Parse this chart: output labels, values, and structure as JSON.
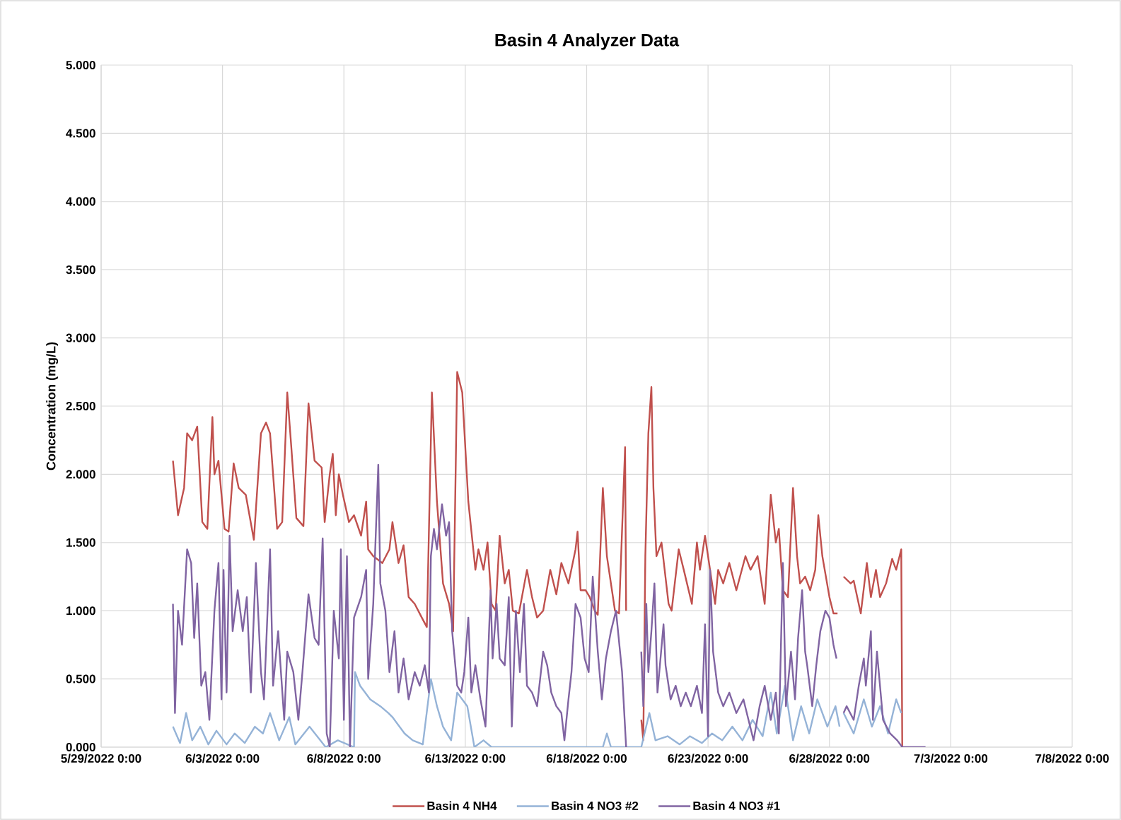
{
  "chart_data": {
    "type": "line",
    "title": "Basin 4 Analyzer Data",
    "ylabel": "Concentration (mg/L)",
    "xlim": [
      "2022-05-29",
      "2022-07-08"
    ],
    "xticks": [
      {
        "value": "2022-05-29",
        "label": "5/29/2022 0:00"
      },
      {
        "value": "2022-06-03",
        "label": "6/3/2022 0:00"
      },
      {
        "value": "2022-06-08",
        "label": "6/8/2022 0:00"
      },
      {
        "value": "2022-06-13",
        "label": "6/13/2022 0:00"
      },
      {
        "value": "2022-06-18",
        "label": "6/18/2022 0:00"
      },
      {
        "value": "2022-06-23",
        "label": "6/23/2022 0:00"
      },
      {
        "value": "2022-06-28",
        "label": "6/28/2022 0:00"
      },
      {
        "value": "2022-07-03",
        "label": "7/3/2022 0:00"
      },
      {
        "value": "2022-07-08",
        "label": "7/8/2022 0:00"
      }
    ],
    "ylim": [
      0,
      5
    ],
    "yticks": [
      {
        "value": 0,
        "label": "0.000"
      },
      {
        "value": 0.5,
        "label": "0.500"
      },
      {
        "value": 1,
        "label": "1.000"
      },
      {
        "value": 1.5,
        "label": "1.500"
      },
      {
        "value": 2,
        "label": "2.000"
      },
      {
        "value": 2.5,
        "label": "2.500"
      },
      {
        "value": 3,
        "label": "3.000"
      },
      {
        "value": 3.5,
        "label": "3.500"
      },
      {
        "value": 4,
        "label": "4.000"
      },
      {
        "value": 4.5,
        "label": "4.500"
      },
      {
        "value": 5,
        "label": "5.000"
      }
    ],
    "grid": true,
    "legend": "bottom",
    "line_style": "solid",
    "series": [
      {
        "name": "Basin 4 NH4",
        "color": "#c0504d",
        "x": [
          "2022-05-31T23:00",
          "2022-06-01T04:00",
          "2022-06-01T10:00",
          "2022-06-01T13:00",
          "2022-06-01T18:00",
          "2022-06-01T23:00",
          "2022-06-02T04:00",
          "2022-06-02T09:00",
          "2022-06-02T14:00",
          "2022-06-02T16:00",
          "2022-06-02T20:00",
          "2022-06-02T23:00",
          "2022-06-03T02:00",
          "2022-06-03T06:00",
          "2022-06-03T11:00",
          "2022-06-03T16:00",
          "2022-06-03T23:00",
          "2022-06-04T07:00",
          "2022-06-04T14:00",
          "2022-06-04T19:00",
          "2022-06-04T23:00",
          "2022-06-05T06:00",
          "2022-06-05T11:00",
          "2022-06-05T16:00",
          "2022-06-05T20:00",
          "2022-06-06T01:00",
          "2022-06-06T08:00",
          "2022-06-06T13:00",
          "2022-06-06T19:00",
          "2022-06-07T02:00",
          "2022-06-07T05:00",
          "2022-06-07T10:00",
          "2022-06-07T13:00",
          "2022-06-07T16:00",
          "2022-06-07T19:00",
          "2022-06-07T23:00",
          "2022-06-08T05:00",
          "2022-06-08T10:00",
          "2022-06-08T17:00",
          "2022-06-08T22:00",
          "2022-06-09T00:00",
          "2022-06-09T05:00",
          "2022-06-09T14:00",
          "2022-06-09T21:00",
          "2022-06-10T00:00",
          "2022-06-10T06:00",
          "2022-06-10T11:00",
          "2022-06-10T16:00",
          "2022-06-10T22:00",
          "2022-06-11T05:00",
          "2022-06-11T10:00",
          "2022-06-11T15:00",
          "2022-06-11T20:00",
          "2022-06-12T02:00",
          "2022-06-12T08:00",
          "2022-06-12T12:00",
          "2022-06-12T16:00",
          "2022-06-12T21:00",
          "2022-06-13T03:00",
          "2022-06-13T10:00",
          "2022-06-13T13:00",
          "2022-06-13T18:00",
          "2022-06-13T22:00",
          "2022-06-14T02:00",
          "2022-06-14T06:00",
          "2022-06-14T10:00",
          "2022-06-14T15:00",
          "2022-06-14T19:00",
          "2022-06-14T23:00",
          "2022-06-15T05:00",
          "2022-06-15T13:00",
          "2022-06-15T18:00",
          "2022-06-15T23:00",
          "2022-06-16T05:00",
          "2022-06-16T12:00",
          "2022-06-16T18:00",
          "2022-06-16T23:00",
          "2022-06-17T06:00",
          "2022-06-17T13:00",
          "2022-06-17T15:00",
          "2022-06-17T18:00",
          "2022-06-17T23:00",
          "2022-06-18T03:00",
          "2022-06-18T08:00",
          "2022-06-18T11:00",
          "2022-06-18T16:00",
          "2022-06-18T20:00",
          "2022-06-19T04:00",
          "2022-06-19T08:00",
          "2022-06-19T14:00",
          "2022-06-19T15:00",
          "2022-06-20T00:00",
          "2022-06-20T06:00",
          "2022-06-20T08:00",
          "2022-06-20T10:00",
          "2022-06-20T13:00",
          "2022-06-20T16:00",
          "2022-06-20T18:00",
          "2022-06-20T21:00",
          "2022-06-21T02:00",
          "2022-06-21T09:00",
          "2022-06-21T12:00",
          "2022-06-21T19:00",
          "2022-06-22T00:00",
          "2022-06-22T08:00",
          "2022-06-22T13:00",
          "2022-06-22T16:00",
          "2022-06-22T21:00",
          "2022-06-23T02:00",
          "2022-06-23T07:00",
          "2022-06-23T10:00",
          "2022-06-23T15:00",
          "2022-06-23T21:00",
          "2022-06-24T04:00",
          "2022-06-24T13:00",
          "2022-06-24T18:00",
          "2022-06-25T01:00",
          "2022-06-25T08:00",
          "2022-06-25T14:00",
          "2022-06-25T19:00",
          "2022-06-25T22:00",
          "2022-06-26T02:00",
          "2022-06-26T07:00",
          "2022-06-26T12:00",
          "2022-06-26T16:00",
          "2022-06-26T19:00",
          "2022-06-27T00:00",
          "2022-06-27T05:00",
          "2022-06-27T10:00",
          "2022-06-27T13:00",
          "2022-06-27T17:00",
          "2022-06-28T00:00",
          "2022-06-28T04:00",
          "2022-06-28T08:00",
          "2022-06-28T12:00",
          "2022-06-28T14:00",
          "2022-06-28T21:00",
          "2022-06-29T00:00",
          "2022-06-29T07:00",
          "2022-06-29T13:00",
          "2022-06-29T17:00",
          "2022-06-29T22:00",
          "2022-06-30T02:00",
          "2022-06-30T08:00",
          "2022-06-30T14:00",
          "2022-06-30T18:00",
          "2022-06-30T23:00",
          "2022-07-01T00:00"
        ],
        "values": [
          2.1,
          1.7,
          1.9,
          2.3,
          2.25,
          2.35,
          1.65,
          1.6,
          2.42,
          2.0,
          2.1,
          1.85,
          1.6,
          1.58,
          2.08,
          1.9,
          1.85,
          1.52,
          2.3,
          2.38,
          2.3,
          1.6,
          1.65,
          2.6,
          2.2,
          1.68,
          1.62,
          2.52,
          2.1,
          2.05,
          1.65,
          2.0,
          2.15,
          1.7,
          2.0,
          1.85,
          1.65,
          1.7,
          1.55,
          1.8,
          1.45,
          1.4,
          1.35,
          1.45,
          1.65,
          1.35,
          1.48,
          1.1,
          1.05,
          0.95,
          0.88,
          2.6,
          1.8,
          1.2,
          1.05,
          0.85,
          2.75,
          2.6,
          1.8,
          1.3,
          1.45,
          1.3,
          1.5,
          1.05,
          1.0,
          1.55,
          1.2,
          1.3,
          1.0,
          0.98,
          1.3,
          1.1,
          0.95,
          1.0,
          1.3,
          1.12,
          1.35,
          1.2,
          1.45,
          1.58,
          1.15,
          1.15,
          1.1,
          1.0,
          0.97,
          1.9,
          1.4,
          1.0,
          0.98,
          2.2,
          1.0,
          null,
          0.2,
          0.05,
          1.4,
          2.3,
          2.64,
          1.9,
          1.4,
          1.5,
          1.05,
          1.0,
          1.45,
          1.3,
          1.05,
          1.5,
          1.3,
          1.55,
          1.3,
          1.05,
          1.3,
          1.2,
          1.35,
          1.15,
          1.4,
          1.3,
          1.4,
          1.05,
          1.85,
          1.5,
          1.6,
          1.15,
          1.1,
          1.9,
          1.4,
          1.2,
          1.25,
          1.15,
          1.3,
          1.7,
          1.4,
          1.1,
          0.98,
          0.98,
          null,
          1.25,
          1.2,
          1.22,
          0.98,
          1.35,
          1.1,
          1.3,
          1.1,
          1.2,
          1.38,
          1.3,
          1.45,
          0.0
        ]
      },
      {
        "name": "Basin 4 NO3 #2",
        "color": "#95b3d7",
        "x": [
          "2022-05-31T23:00",
          "2022-06-01T06:00",
          "2022-06-01T12:00",
          "2022-06-01T18:00",
          "2022-06-02T02:00",
          "2022-06-02T10:00",
          "2022-06-02T18:00",
          "2022-06-03T04:00",
          "2022-06-03T12:00",
          "2022-06-03T22:00",
          "2022-06-04T08:00",
          "2022-06-04T16:00",
          "2022-06-04T23:00",
          "2022-06-05T08:00",
          "2022-06-05T18:00",
          "2022-06-06T00:00",
          "2022-06-06T14:00",
          "2022-06-07T06:00",
          "2022-06-07T18:00",
          "2022-06-08T10:00",
          "2022-06-08T11:00",
          "2022-06-08T16:00",
          "2022-06-09T02:00",
          "2022-06-09T12:00",
          "2022-06-09T20:00",
          "2022-06-10T00:00",
          "2022-06-10T12:00",
          "2022-06-10T20:00",
          "2022-06-11T06:00",
          "2022-06-11T14:00",
          "2022-06-11T20:00",
          "2022-06-12T02:00",
          "2022-06-12T10:00",
          "2022-06-12T16:00",
          "2022-06-13T02:00",
          "2022-06-13T09:00",
          "2022-06-13T18:00",
          "2022-06-14T02:00",
          "2022-06-18T16:00",
          "2022-06-18T20:00",
          "2022-06-19T00:00",
          "2022-06-20T06:00",
          "2022-06-20T14:00",
          "2022-06-20T20:00",
          "2022-06-21T08:00",
          "2022-06-21T20:00",
          "2022-06-22T06:00",
          "2022-06-22T18:00",
          "2022-06-23T04:00",
          "2022-06-23T14:00",
          "2022-06-24T00:00",
          "2022-06-24T10:00",
          "2022-06-24T20:00",
          "2022-06-25T06:00",
          "2022-06-25T14:00",
          "2022-06-25T20:00",
          "2022-06-26T04:00",
          "2022-06-26T12:00",
          "2022-06-26T20:00",
          "2022-06-27T04:00",
          "2022-06-27T12:00",
          "2022-06-27T22:00",
          "2022-06-28T06:00",
          "2022-06-28T10:00",
          "2022-06-28T12:00",
          "2022-06-28T14:00",
          "2022-06-29T00:00",
          "2022-06-29T10:00",
          "2022-06-29T18:00",
          "2022-06-30T02:00",
          "2022-06-30T10:00",
          "2022-06-30T18:00",
          "2022-06-30T23:00"
        ],
        "values": [
          0.15,
          0.03,
          0.25,
          0.05,
          0.15,
          0.02,
          0.12,
          0.02,
          0.1,
          0.03,
          0.15,
          0.1,
          0.25,
          0.05,
          0.22,
          0.02,
          0.15,
          0.0,
          0.05,
          0.0,
          0.55,
          0.45,
          0.35,
          0.3,
          0.25,
          0.22,
          0.1,
          0.05,
          0.02,
          0.5,
          0.3,
          0.15,
          0.05,
          0.4,
          0.3,
          0.0,
          0.05,
          0.0,
          0.0,
          0.1,
          0.0,
          0.0,
          0.25,
          0.05,
          0.08,
          0.02,
          0.08,
          0.03,
          0.1,
          0.05,
          0.15,
          0.05,
          0.2,
          0.08,
          0.4,
          0.1,
          0.45,
          0.05,
          0.3,
          0.1,
          0.35,
          0.15,
          0.3,
          0.15,
          null,
          0.25,
          0.1,
          0.35,
          0.15,
          0.3,
          0.1,
          0.35,
          0.25
        ]
      },
      {
        "name": "Basin 4 NO3 #1",
        "color": "#8064a2",
        "x": [
          "2022-05-31T23:00",
          "2022-06-01T01:00",
          "2022-06-01T04:00",
          "2022-06-01T08:00",
          "2022-06-01T13:00",
          "2022-06-01T17:00",
          "2022-06-01T20:00",
          "2022-06-01T23:00",
          "2022-06-02T03:00",
          "2022-06-02T07:00",
          "2022-06-02T11:00",
          "2022-06-02T16:00",
          "2022-06-02T20:00",
          "2022-06-02T23:00",
          "2022-06-03T01:00",
          "2022-06-03T04:00",
          "2022-06-03T07:00",
          "2022-06-03T10:00",
          "2022-06-03T15:00",
          "2022-06-03T20:00",
          "2022-06-04T00:00",
          "2022-06-04T04:00",
          "2022-06-04T09:00",
          "2022-06-04T14:00",
          "2022-06-04T17:00",
          "2022-06-04T23:00",
          "2022-06-05T02:00",
          "2022-06-05T07:00",
          "2022-06-05T13:00",
          "2022-06-05T16:00",
          "2022-06-05T22:00",
          "2022-06-06T03:00",
          "2022-06-06T07:00",
          "2022-06-06T13:00",
          "2022-06-06T19:00",
          "2022-06-06T23:00",
          "2022-06-07T03:00",
          "2022-06-07T07:00",
          "2022-06-07T10:00",
          "2022-06-07T14:00",
          "2022-06-07T19:00",
          "2022-06-07T21:00",
          "2022-06-08T00:00",
          "2022-06-08T03:00",
          "2022-06-08T06:00",
          "2022-06-08T10:00",
          "2022-06-08T17:00",
          "2022-06-08T22:00",
          "2022-06-09T00:00",
          "2022-06-09T05:00",
          "2022-06-09T10:00",
          "2022-06-09T12:00",
          "2022-06-09T17:00",
          "2022-06-09T21:00",
          "2022-06-10T02:00",
          "2022-06-10T06:00",
          "2022-06-10T11:00",
          "2022-06-10T16:00",
          "2022-06-10T22:00",
          "2022-06-11T03:00",
          "2022-06-11T08:00",
          "2022-06-11T12:00",
          "2022-06-11T14:00",
          "2022-06-11T17:00",
          "2022-06-11T20:00",
          "2022-06-12T01:00",
          "2022-06-12T05:00",
          "2022-06-12T08:00",
          "2022-06-12T11:00",
          "2022-06-12T16:00",
          "2022-06-12T20:00",
          "2022-06-12T23:00",
          "2022-06-13T03:00",
          "2022-06-13T06:00",
          "2022-06-13T10:00",
          "2022-06-13T15:00",
          "2022-06-13T20:00",
          "2022-06-14T01:00",
          "2022-06-14T03:00",
          "2022-06-14T07:00",
          "2022-06-14T10:00",
          "2022-06-14T15:00",
          "2022-06-14T19:00",
          "2022-06-14T22:00",
          "2022-06-15T02:00",
          "2022-06-15T06:00",
          "2022-06-15T10:00",
          "2022-06-15T13:00",
          "2022-06-15T18:00",
          "2022-06-15T23:00",
          "2022-06-16T05:00",
          "2022-06-16T09:00",
          "2022-06-16T13:00",
          "2022-06-16T18:00",
          "2022-06-16T23:00",
          "2022-06-17T02:00",
          "2022-06-17T06:00",
          "2022-06-17T09:00",
          "2022-06-17T13:00",
          "2022-06-17T18:00",
          "2022-06-17T22:00",
          "2022-06-18T02:00",
          "2022-06-18T06:00",
          "2022-06-18T11:00",
          "2022-06-18T15:00",
          "2022-06-18T19:00",
          "2022-06-19T00:00",
          "2022-06-19T05:00",
          "2022-06-19T11:00",
          "2022-06-19T15:00",
          "2022-06-20T00:00",
          "2022-06-20T06:00",
          "2022-06-20T08:00",
          "2022-06-20T11:00",
          "2022-06-20T13:00",
          "2022-06-20T16:00",
          "2022-06-20T19:00",
          "2022-06-20T22:00",
          "2022-06-21T04:00",
          "2022-06-21T06:00",
          "2022-06-21T11:00",
          "2022-06-21T16:00",
          "2022-06-21T21:00",
          "2022-06-22T02:00",
          "2022-06-22T07:00",
          "2022-06-22T13:00",
          "2022-06-22T18:00",
          "2022-06-22T21:00",
          "2022-06-23T00:00",
          "2022-06-23T02:00",
          "2022-06-23T05:00",
          "2022-06-23T10:00",
          "2022-06-23T15:00",
          "2022-06-23T21:00",
          "2022-06-24T04:00",
          "2022-06-24T11:00",
          "2022-06-24T16:00",
          "2022-06-24T21:00",
          "2022-06-25T03:00",
          "2022-06-25T08:00",
          "2022-06-25T14:00",
          "2022-06-25T19:00",
          "2022-06-25T22:00",
          "2022-06-26T02:00",
          "2022-06-26T05:00",
          "2022-06-26T10:00",
          "2022-06-26T14:00",
          "2022-06-26T17:00",
          "2022-06-26T21:00",
          "2022-06-27T00:00",
          "2022-06-27T02:00",
          "2022-06-27T07:00",
          "2022-06-27T11:00",
          "2022-06-27T15:00",
          "2022-06-27T20:00",
          "2022-06-28T00:00",
          "2022-06-28T04:00",
          "2022-06-28T07:00",
          "2022-06-28T12:00",
          "2022-06-28T14:00",
          "2022-06-28T17:00",
          "2022-06-29T00:00",
          "2022-06-29T05:00",
          "2022-06-29T10:00",
          "2022-06-29T12:00",
          "2022-06-29T17:00",
          "2022-06-29T19:00",
          "2022-06-29T23:00",
          "2022-06-30T05:00",
          "2022-06-30T12:00",
          "2022-06-30T19:00",
          "2022-07-01T00:00",
          "2022-07-01T23:00"
        ],
        "values": [
          1.05,
          0.25,
          1.0,
          0.75,
          1.45,
          1.35,
          0.8,
          1.2,
          0.45,
          0.55,
          0.2,
          1.0,
          1.35,
          0.35,
          1.3,
          0.4,
          1.55,
          0.85,
          1.15,
          0.85,
          1.1,
          0.4,
          1.35,
          0.55,
          0.35,
          1.45,
          0.45,
          0.85,
          0.2,
          0.7,
          0.55,
          0.2,
          0.55,
          1.12,
          0.8,
          0.75,
          1.53,
          0.1,
          0.0,
          1.0,
          0.65,
          1.45,
          0.2,
          1.4,
          0.0,
          0.95,
          1.1,
          1.3,
          0.5,
          1.05,
          2.07,
          1.2,
          1.0,
          0.55,
          0.85,
          0.4,
          0.65,
          0.35,
          0.55,
          0.45,
          0.6,
          0.4,
          1.4,
          1.6,
          1.45,
          1.78,
          1.55,
          1.65,
          0.85,
          0.45,
          0.4,
          0.55,
          0.95,
          0.4,
          0.6,
          0.35,
          0.15,
          1.15,
          0.65,
          1.05,
          0.65,
          0.6,
          1.1,
          0.15,
          1.0,
          0.55,
          1.05,
          0.45,
          0.4,
          0.3,
          0.7,
          0.6,
          0.4,
          0.3,
          0.25,
          0.05,
          0.35,
          0.55,
          1.05,
          0.95,
          0.65,
          0.55,
          1.25,
          0.7,
          0.35,
          0.65,
          0.85,
          1.0,
          0.55,
          0.0,
          null,
          0.7,
          0.3,
          1.05,
          0.55,
          0.85,
          1.2,
          0.4,
          0.9,
          0.6,
          0.35,
          0.45,
          0.3,
          0.4,
          0.3,
          0.45,
          0.25,
          0.9,
          0.08,
          1.3,
          0.7,
          0.4,
          0.3,
          0.4,
          0.25,
          0.35,
          0.2,
          0.05,
          0.3,
          0.45,
          0.2,
          0.4,
          0.1,
          1.35,
          0.3,
          0.7,
          0.35,
          0.8,
          1.15,
          0.7,
          0.6,
          0.3,
          0.6,
          0.85,
          1.0,
          0.95,
          0.75,
          0.65,
          null,
          0.25,
          0.3,
          0.2,
          0.45,
          0.65,
          0.45,
          0.85,
          0.2,
          0.7,
          0.2,
          0.1,
          0.05,
          0.0,
          0.0
        ]
      }
    ]
  }
}
